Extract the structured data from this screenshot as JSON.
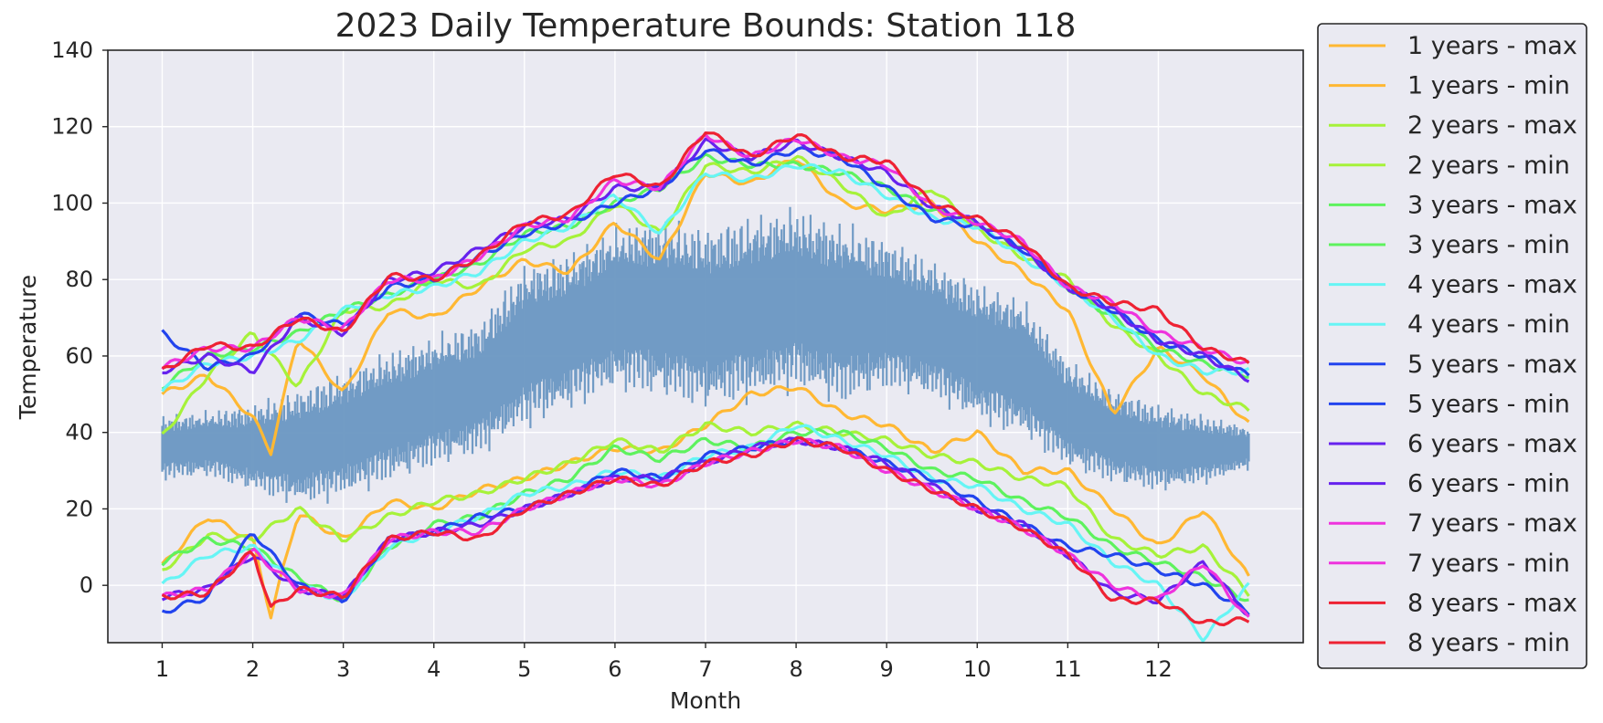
{
  "chart_data": {
    "type": "line",
    "title": "2023 Daily Temperature Bounds: Station 118",
    "xlabel": "Month",
    "ylabel": "Temperature",
    "xlim": [
      0.4,
      13.6
    ],
    "ylim": [
      -15,
      140
    ],
    "x_ticks": [
      1,
      2,
      3,
      4,
      5,
      6,
      7,
      8,
      9,
      10,
      11,
      12
    ],
    "y_ticks": [
      0,
      20,
      40,
      60,
      80,
      100,
      120,
      140
    ],
    "grid": true,
    "legend_placement": "right-outside",
    "plot_background": "#EAEAF2",
    "daily_band": {
      "color": "#6A97C2",
      "x": [
        1,
        1.5,
        2,
        2.5,
        3,
        3.5,
        4,
        4.5,
        5,
        5.5,
        6,
        6.5,
        7,
        7.5,
        8,
        8.5,
        9,
        9.5,
        10,
        10.5,
        11,
        11.5,
        12,
        12.5,
        13
      ],
      "low": [
        27,
        28,
        24,
        20,
        22,
        26,
        30,
        33,
        40,
        45,
        50,
        48,
        45,
        47,
        50,
        46,
        50,
        48,
        42,
        38,
        30,
        26,
        24,
        26,
        30
      ],
      "high": [
        45,
        46,
        48,
        52,
        57,
        62,
        66,
        70,
        85,
        88,
        95,
        97,
        95,
        98,
        100,
        96,
        92,
        86,
        80,
        76,
        60,
        52,
        48,
        45,
        42
      ]
    },
    "series": [
      {
        "name": "1 years - max",
        "color": "#FFB833",
        "x": [
          1,
          1.5,
          2,
          2.2,
          2.5,
          3,
          3.5,
          4,
          4.5,
          5,
          5.5,
          6,
          6.5,
          7,
          7.5,
          8,
          8.5,
          9,
          9.5,
          10,
          10.5,
          11,
          11.5,
          12,
          12.5,
          13
        ],
        "values": [
          50,
          55,
          44,
          35,
          65,
          50,
          72,
          70,
          78,
          85,
          82,
          95,
          85,
          108,
          105,
          112,
          100,
          98,
          100,
          90,
          82,
          72,
          45,
          62,
          55,
          42
        ]
      },
      {
        "name": "1 years - min",
        "color": "#FFB833",
        "x": [
          1,
          1.5,
          2,
          2.2,
          2.5,
          3,
          3.5,
          4,
          4.5,
          5,
          5.5,
          6,
          6.5,
          7,
          7.5,
          8,
          8.5,
          9,
          9.5,
          10,
          10.5,
          11,
          11.5,
          12,
          12.5,
          13
        ],
        "values": [
          5,
          18,
          12,
          -8,
          19,
          12,
          22,
          20,
          25,
          28,
          32,
          36,
          35,
          42,
          50,
          52,
          45,
          42,
          35,
          40,
          30,
          30,
          20,
          10,
          20,
          2
        ]
      },
      {
        "name": "2 years - max",
        "color": "#A6F23A",
        "x": [
          1,
          1.5,
          2,
          2.5,
          3,
          3.5,
          4,
          4.5,
          5,
          5.5,
          6,
          6.5,
          7,
          7.5,
          8,
          8.5,
          9,
          9.5,
          10,
          10.5,
          11,
          11.5,
          12,
          12.5,
          13
        ],
        "values": [
          39,
          55,
          66,
          52,
          72,
          73,
          80,
          78,
          88,
          90,
          100,
          92,
          110,
          108,
          112,
          105,
          96,
          104,
          93,
          86,
          80,
          68,
          60,
          50,
          46
        ]
      },
      {
        "name": "2 years - min",
        "color": "#A6F23A",
        "x": [
          1,
          1.5,
          2,
          2.5,
          3,
          3.5,
          4,
          4.5,
          5,
          5.5,
          6,
          6.5,
          7,
          7.5,
          8,
          8.5,
          9,
          9.5,
          10,
          10.5,
          11,
          11.5,
          12,
          12.5,
          13
        ],
        "values": [
          4,
          13,
          12,
          20,
          12,
          18,
          22,
          24,
          28,
          32,
          38,
          35,
          42,
          40,
          42,
          40,
          38,
          34,
          32,
          28,
          26,
          12,
          8,
          10,
          -2
        ]
      },
      {
        "name": "3 years - max",
        "color": "#5EF25E",
        "x": [
          1,
          1.5,
          2,
          2.5,
          3,
          3.5,
          4,
          4.5,
          5,
          5.5,
          6,
          6.5,
          7,
          7.5,
          8,
          8.5,
          9,
          9.5,
          10,
          10.5,
          11,
          11.5,
          12,
          12.5,
          13
        ],
        "values": [
          52,
          60,
          62,
          66,
          72,
          76,
          80,
          84,
          92,
          94,
          100,
          104,
          112,
          110,
          110,
          108,
          104,
          98,
          95,
          88,
          78,
          70,
          62,
          58,
          55
        ]
      },
      {
        "name": "3 years - min",
        "color": "#5EF25E",
        "x": [
          1,
          1.5,
          2,
          2.5,
          3,
          3.5,
          4,
          4.5,
          5,
          5.5,
          6,
          6.5,
          7,
          7.5,
          8,
          8.5,
          9,
          9.5,
          10,
          10.5,
          11,
          11.5,
          12,
          12.5,
          13
        ],
        "values": [
          6,
          12,
          10,
          2,
          -4,
          10,
          16,
          18,
          24,
          28,
          36,
          33,
          38,
          36,
          40,
          40,
          36,
          30,
          28,
          22,
          18,
          10,
          6,
          2,
          -4
        ]
      },
      {
        "name": "4 years - max",
        "color": "#66F5F5",
        "x": [
          1,
          1.5,
          2,
          2.5,
          3,
          3.5,
          4,
          4.5,
          5,
          5.5,
          6,
          6.5,
          7,
          7.5,
          8,
          8.5,
          9,
          9.5,
          10,
          10.5,
          11,
          11.5,
          12,
          12.5,
          13
        ],
        "values": [
          51,
          58,
          60,
          64,
          72,
          76,
          78,
          82,
          90,
          94,
          102,
          92,
          108,
          106,
          110,
          108,
          102,
          96,
          94,
          86,
          78,
          70,
          60,
          56,
          56
        ]
      },
      {
        "name": "4 years - min",
        "color": "#66F5F5",
        "x": [
          1,
          1.5,
          2,
          2.5,
          3,
          3.5,
          4,
          4.5,
          5,
          5.5,
          6,
          6.5,
          7,
          7.5,
          8,
          8.5,
          9,
          9.5,
          10,
          10.5,
          11,
          11.5,
          12,
          12.5,
          13
        ],
        "values": [
          0,
          8,
          10,
          0,
          -4,
          10,
          14,
          18,
          24,
          26,
          30,
          28,
          34,
          36,
          42,
          38,
          34,
          28,
          26,
          20,
          16,
          6,
          0,
          -14,
          0
        ]
      },
      {
        "name": "5 years - max",
        "color": "#2244EE",
        "x": [
          1,
          1.5,
          2,
          2.5,
          3,
          3.5,
          4,
          4.5,
          5,
          5.5,
          6,
          6.5,
          7,
          7.5,
          8,
          8.5,
          9,
          9.5,
          10,
          10.5,
          11,
          11.5,
          12,
          12.5,
          13
        ],
        "values": [
          66,
          57,
          60,
          71,
          68,
          78,
          80,
          86,
          92,
          95,
          100,
          104,
          114,
          110,
          114,
          112,
          104,
          96,
          94,
          88,
          78,
          72,
          64,
          60,
          55
        ]
      },
      {
        "name": "5 years - min",
        "color": "#2244EE",
        "x": [
          1,
          1.5,
          2,
          2.5,
          3,
          3.5,
          4,
          4.5,
          5,
          5.5,
          6,
          6.5,
          7,
          7.5,
          8,
          8.5,
          9,
          9.5,
          10,
          10.5,
          11,
          11.5,
          12,
          12.5,
          13
        ],
        "values": [
          -7,
          -3,
          14,
          0,
          -4,
          12,
          14,
          18,
          20,
          24,
          30,
          28,
          34,
          36,
          38,
          36,
          32,
          28,
          22,
          16,
          10,
          8,
          4,
          0,
          -7
        ]
      },
      {
        "name": "6 years - max",
        "color": "#6622EE",
        "x": [
          1,
          1.5,
          2,
          2.5,
          3,
          3.5,
          4,
          4.5,
          5,
          5.5,
          6,
          6.5,
          7,
          7.5,
          8,
          8.5,
          9,
          9.5,
          10,
          10.5,
          11,
          11.5,
          12,
          12.5,
          13
        ],
        "values": [
          56,
          60,
          56,
          70,
          66,
          80,
          82,
          88,
          94,
          96,
          104,
          104,
          116,
          112,
          116,
          112,
          108,
          99,
          95,
          88,
          78,
          72,
          64,
          60,
          54
        ]
      },
      {
        "name": "6 years - min",
        "color": "#6622EE",
        "x": [
          1,
          1.5,
          2,
          2.5,
          3,
          3.5,
          4,
          4.5,
          5,
          5.5,
          6,
          6.5,
          7,
          7.5,
          8,
          8.5,
          9,
          9.5,
          10,
          10.5,
          11,
          11.5,
          12,
          12.5,
          13
        ],
        "values": [
          -3,
          -1,
          8,
          -1,
          -3,
          12,
          14,
          16,
          20,
          24,
          28,
          28,
          32,
          36,
          38,
          36,
          32,
          26,
          20,
          16,
          8,
          -2,
          -4,
          6,
          -8
        ]
      },
      {
        "name": "7 years - max",
        "color": "#EE33DD",
        "x": [
          1,
          1.5,
          2,
          2.5,
          3,
          3.5,
          4,
          4.5,
          5,
          5.5,
          6,
          6.5,
          7,
          7.5,
          8,
          8.5,
          9,
          9.5,
          10,
          10.5,
          11,
          11.5,
          12,
          12.5,
          13
        ],
        "values": [
          57,
          62,
          62,
          70,
          67,
          80,
          80,
          86,
          94,
          96,
          106,
          104,
          118,
          112,
          117,
          112,
          110,
          99,
          95,
          90,
          78,
          74,
          66,
          62,
          58
        ]
      },
      {
        "name": "7 years - min",
        "color": "#EE33DD",
        "x": [
          1,
          1.5,
          2,
          2.5,
          3,
          3.5,
          4,
          4.5,
          5,
          5.5,
          6,
          6.5,
          7,
          7.5,
          8,
          8.5,
          9,
          9.5,
          10,
          10.5,
          11,
          11.5,
          12,
          12.5,
          13
        ],
        "values": [
          -3,
          -1,
          9,
          -1,
          -3,
          12,
          14,
          14,
          20,
          24,
          28,
          26,
          32,
          35,
          38,
          36,
          30,
          25,
          20,
          15,
          8,
          0,
          -4,
          6,
          -9
        ]
      },
      {
        "name": "8 years - max",
        "color": "#EE2233",
        "x": [
          1,
          1.5,
          2,
          2.5,
          3,
          3.5,
          4,
          4.5,
          5,
          5.5,
          6,
          6.5,
          7,
          7.5,
          8,
          8.5,
          9,
          9.5,
          10,
          10.5,
          11,
          11.5,
          12,
          12.5,
          13
        ],
        "values": [
          56,
          63,
          62,
          70,
          66,
          81,
          80,
          86,
          95,
          97,
          108,
          104,
          119,
          112,
          118,
          112,
          111,
          100,
          96,
          90,
          78,
          74,
          72,
          62,
          58
        ]
      },
      {
        "name": "8 years - min",
        "color": "#EE2233",
        "x": [
          1,
          1.5,
          2,
          2.2,
          2.5,
          3,
          3.5,
          4,
          4.5,
          5,
          5.5,
          6,
          6.5,
          7,
          7.5,
          8,
          8.5,
          9,
          9.5,
          10,
          10.5,
          11,
          11.5,
          12,
          12.5,
          13
        ],
        "values": [
          -3,
          -2,
          9,
          -6,
          -1,
          -3,
          12,
          14,
          12,
          20,
          24,
          28,
          26,
          32,
          34,
          38,
          36,
          30,
          25,
          20,
          15,
          8,
          -4,
          -4,
          -10,
          -9
        ]
      }
    ]
  }
}
